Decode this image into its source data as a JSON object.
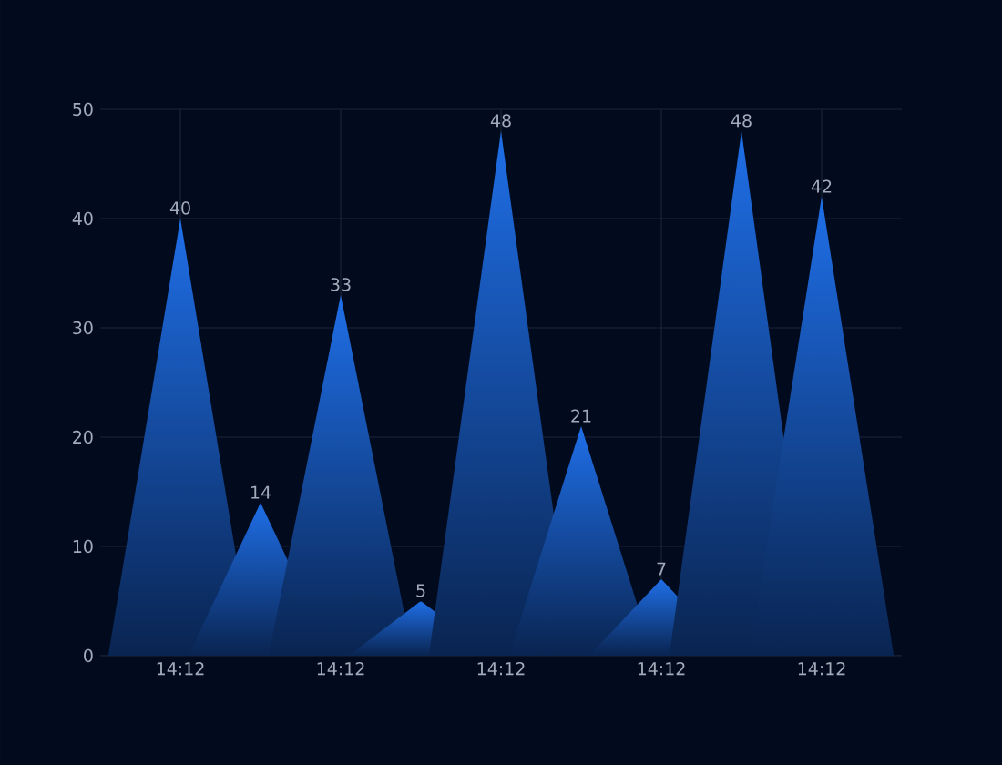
{
  "chart_data": {
    "type": "bar",
    "categories": [
      "14:12",
      null,
      "14:12",
      null,
      "14:12",
      null,
      "14:12",
      null,
      "14:12"
    ],
    "values": [
      40,
      14,
      33,
      5,
      48,
      21,
      7,
      48,
      42
    ],
    "color": "#1f6fe8",
    "ylim": [
      0,
      50
    ],
    "yticks": [
      0,
      10,
      20,
      30,
      40,
      50
    ],
    "grid": true,
    "data_labels": true
  }
}
